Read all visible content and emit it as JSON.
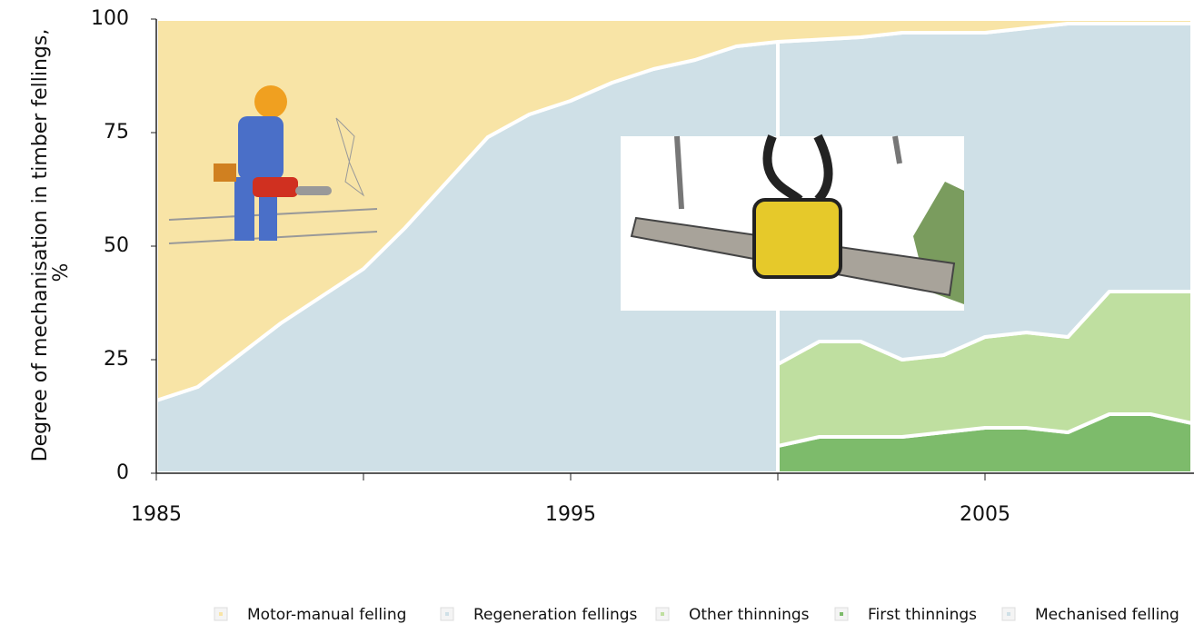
{
  "chart_data": {
    "type": "area",
    "y_label": [
      "Degree of mechanisation in timber fellings,",
      "%"
    ],
    "x": [
      1985,
      1986,
      1987,
      1988,
      1989,
      1990,
      1991,
      1992,
      1993,
      1994,
      1995,
      1996,
      1997,
      1998,
      1999,
      2000,
      2001,
      2002,
      2003,
      2004,
      2005,
      2006,
      2007,
      2008,
      2009,
      2010
    ],
    "xlim": [
      1985,
      2010
    ],
    "xticks": [
      1985,
      1995,
      2005
    ],
    "xticks_minor": [
      1990,
      2000
    ],
    "ylim": [
      0,
      100
    ],
    "yticks": [
      0,
      25,
      50,
      75,
      100
    ],
    "series": [
      {
        "name": "Motor-manual felling",
        "color": "#f8e4a6",
        "values": [
          84,
          81,
          74,
          67,
          61,
          55,
          46,
          36,
          26,
          21,
          18,
          14,
          11,
          9,
          6,
          5,
          4.5,
          4,
          3,
          3,
          3,
          2,
          1,
          1,
          1,
          1
        ]
      },
      {
        "name": "Regeneration fellings",
        "color": "#cfe0e7",
        "values": [
          null,
          null,
          null,
          null,
          null,
          null,
          null,
          null,
          null,
          null,
          null,
          null,
          null,
          null,
          null,
          71,
          66.5,
          67,
          72,
          71,
          67,
          67,
          69,
          59,
          59,
          59
        ]
      },
      {
        "name": "Other thinnings",
        "color": "#bfdfa0",
        "values": [
          null,
          null,
          null,
          null,
          null,
          null,
          null,
          null,
          null,
          null,
          null,
          null,
          null,
          null,
          null,
          18,
          21,
          21,
          17,
          17,
          20,
          21,
          21,
          27,
          27,
          29
        ]
      },
      {
        "name": "First thinnings",
        "color": "#7dbb6b",
        "values": [
          null,
          null,
          null,
          null,
          null,
          null,
          null,
          null,
          null,
          null,
          null,
          null,
          null,
          null,
          null,
          6,
          8,
          8,
          8,
          9,
          10,
          10,
          9,
          13,
          13,
          11
        ]
      },
      {
        "name": "Mechanised felling",
        "color": "#cfe0e7",
        "values": [
          16,
          19,
          26,
          33,
          39,
          45,
          54,
          64,
          74,
          79,
          82,
          86,
          89,
          91,
          94,
          95,
          null,
          null,
          null,
          null,
          null,
          null,
          null,
          null,
          null,
          null
        ]
      }
    ]
  }
}
